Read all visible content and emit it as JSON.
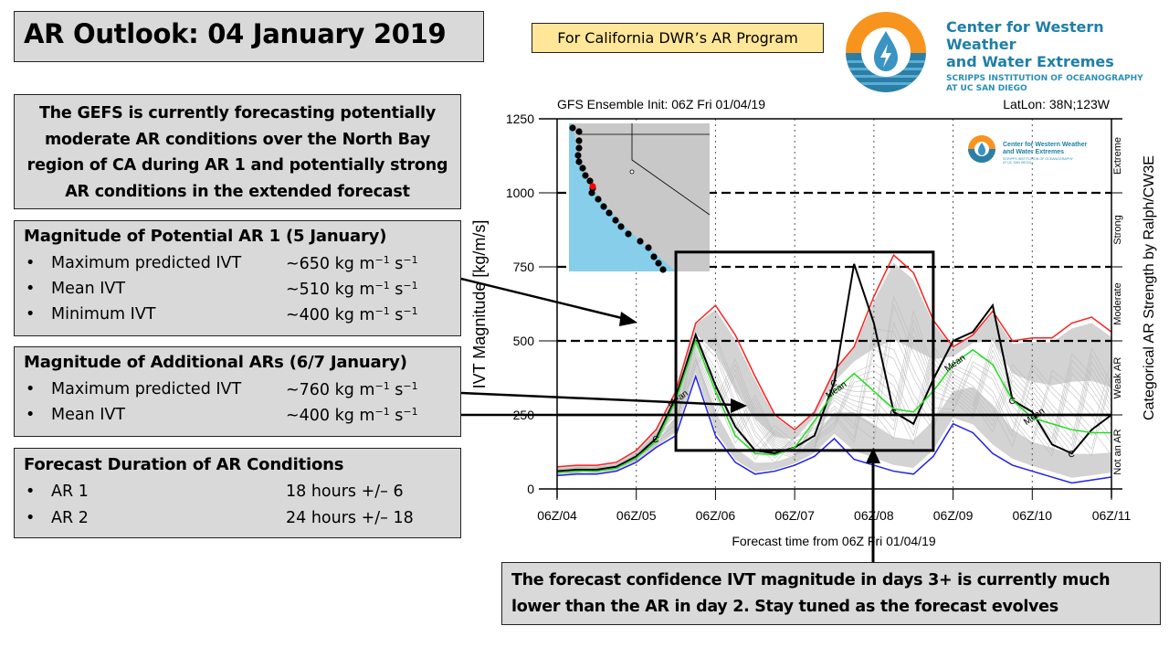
{
  "title": "AR Outlook: 04 January 2019",
  "program_label": "For California DWR’s AR Program",
  "logo": {
    "name_line1": "Center for Western Weather",
    "name_line2": "and Water Extremes",
    "sub_line1": "SCRIPPS INSTITUTION OF OCEANOGRAPHY",
    "sub_line2": "AT UC SAN DIEGO",
    "colors": {
      "orange": "#f7941d",
      "blue": "#2b7fa6",
      "drop": "#3a93c3"
    }
  },
  "summary": "The GEFS is currently forecasting potentially moderate AR conditions over the North Bay region of CA during AR 1 and potentially strong AR conditions in the extended forecast",
  "ar1": {
    "heading": "Magnitude of Potential AR 1 (5 January)",
    "rows": [
      {
        "label": "Maximum predicted IVT",
        "value": "~650 kg m",
        "exp1": "−1",
        "unit2": " s",
        "exp2": "−1"
      },
      {
        "label": "Mean IVT",
        "value": "~510 kg m",
        "exp1": "−1",
        "unit2": " s",
        "exp2": "−1"
      },
      {
        "label": "Minimum IVT",
        "value": "~400 kg m",
        "exp1": "−1",
        "unit2": " s",
        "exp2": "−1"
      }
    ]
  },
  "additional": {
    "heading": "Magnitude of Additional ARs (6/7 January)",
    "rows": [
      {
        "label": "Maximum predicted IVT",
        "value": "~760 kg m",
        "exp1": "−1",
        "unit2": " s",
        "exp2": "−1"
      },
      {
        "label": "Mean IVT",
        "value": "~400 kg m",
        "exp1": "−1",
        "unit2": " s",
        "exp2": "−1"
      }
    ]
  },
  "duration": {
    "heading": "Forecast Duration of AR Conditions",
    "rows": [
      {
        "label": "AR 1",
        "value": "18 hours +/– 6"
      },
      {
        "label": "AR 2",
        "value": "24 hours +/– 18"
      }
    ]
  },
  "confidence_note": "The forecast confidence IVT magnitude in days 3+ is currently much lower than the AR in day 2. Stay tuned as the forecast evolves",
  "chart_data": {
    "type": "line",
    "title": "GFS Ensemble Init: 06Z Fri 01/04/19",
    "location": "LatLon: 38N;123W",
    "xlabel": "Forecast time from 06Z Fri 01/04/19",
    "ylabel": "IVT Magnitude [kg/m/s]",
    "right_label": "Categorical AR Strength by Ralph/CW3E",
    "x_ticks": [
      "06Z/04",
      "06Z/05",
      "06Z/06",
      "06Z/07",
      "06Z/08",
      "06Z/09",
      "06Z/10",
      "06Z/11"
    ],
    "x_hours_range": [
      0,
      168
    ],
    "ylim": [
      0,
      1250
    ],
    "y_ticks": [
      0,
      250,
      500,
      750,
      1000,
      1250
    ],
    "thresholds": [
      250,
      500,
      750,
      1000
    ],
    "categories": [
      {
        "label": "Not an AR",
        "range": [
          0,
          250
        ]
      },
      {
        "label": "Weak AR",
        "range": [
          250,
          500
        ]
      },
      {
        "label": "Moderate",
        "range": [
          500,
          750
        ]
      },
      {
        "label": "Strong",
        "range": [
          750,
          1000
        ]
      },
      {
        "label": "Extreme",
        "range": [
          1000,
          1250
        ]
      }
    ],
    "x_hours": [
      0,
      6,
      12,
      18,
      24,
      30,
      36,
      42,
      48,
      54,
      60,
      66,
      72,
      78,
      84,
      90,
      96,
      102,
      108,
      114,
      120,
      126,
      132,
      138,
      144,
      150,
      156,
      162,
      168
    ],
    "series": [
      {
        "name": "Max",
        "color": "#ff2020",
        "values": [
          75,
          80,
          80,
          90,
          130,
          200,
          330,
          560,
          620,
          520,
          380,
          250,
          200,
          260,
          400,
          480,
          650,
          790,
          730,
          570,
          480,
          520,
          600,
          500,
          510,
          510,
          560,
          580,
          530
        ]
      },
      {
        "name": "Control",
        "color": "#000000",
        "label": "C",
        "values": [
          60,
          65,
          65,
          75,
          110,
          170,
          310,
          520,
          350,
          210,
          130,
          120,
          140,
          180,
          360,
          760,
          560,
          260,
          220,
          370,
          500,
          530,
          620,
          300,
          260,
          150,
          120,
          200,
          250
        ]
      },
      {
        "name": "Mean",
        "color": "#22dd22",
        "label": "Mean",
        "values": [
          55,
          60,
          60,
          70,
          105,
          160,
          300,
          500,
          330,
          180,
          120,
          115,
          140,
          230,
          330,
          390,
          330,
          270,
          260,
          330,
          420,
          470,
          420,
          300,
          240,
          220,
          200,
          190,
          190
        ]
      },
      {
        "name": "Min",
        "color": "#2020ee",
        "values": [
          45,
          50,
          50,
          60,
          90,
          140,
          180,
          380,
          180,
          90,
          50,
          60,
          80,
          110,
          170,
          100,
          80,
          60,
          50,
          110,
          220,
          190,
          120,
          80,
          60,
          40,
          20,
          30,
          40
        ]
      }
    ],
    "spread_bands": [
      {
        "name": "upper-band",
        "color": "#d3d3d3"
      },
      {
        "name": "lower-band",
        "color": "#d3d3d3"
      }
    ],
    "inset_map": {
      "description": "Coastal California map with IVT forecast points",
      "highlight_point_color": "#ff0000",
      "ocean_color": "#87ceeb",
      "land_color": "#c8c8c8"
    },
    "annotation_box": {
      "x_hours": [
        36,
        114
      ],
      "y_range": [
        130,
        800
      ]
    }
  }
}
